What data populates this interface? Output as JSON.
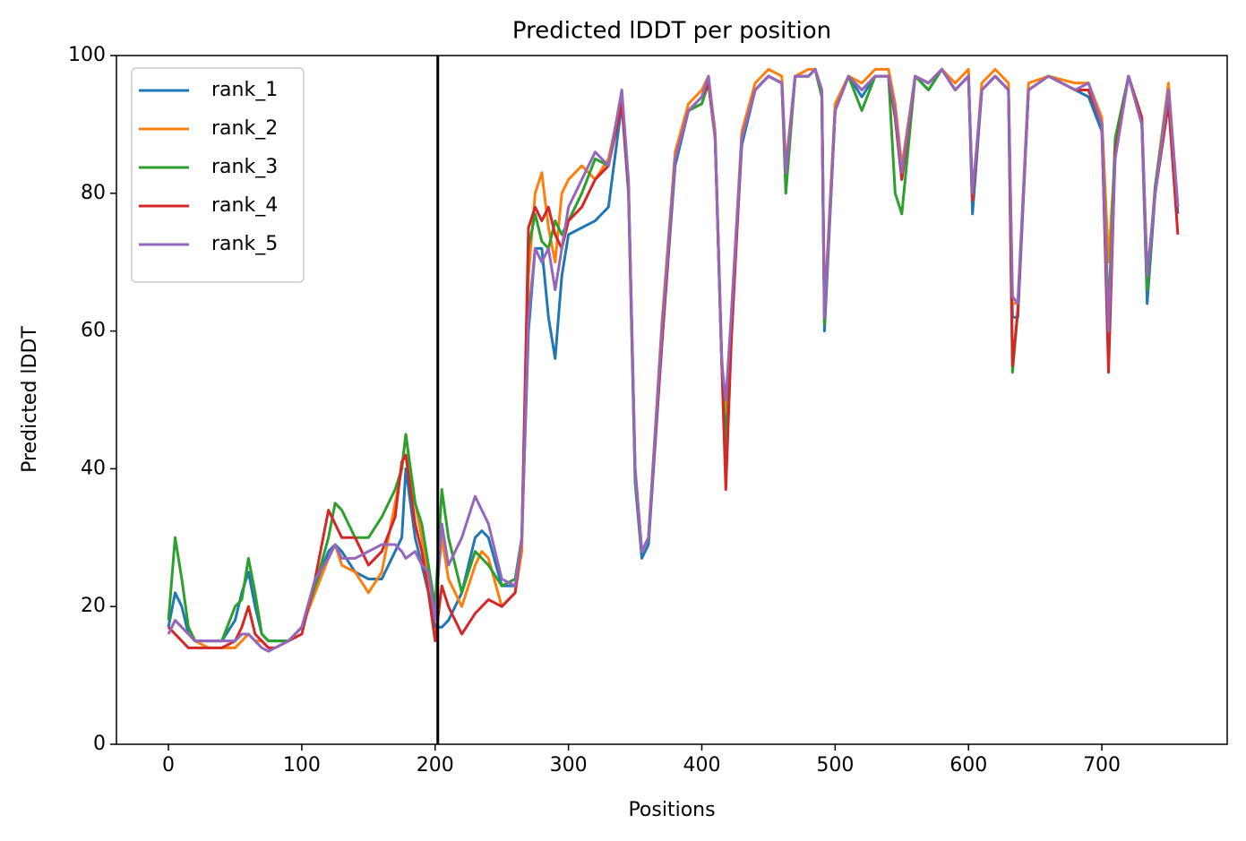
{
  "chart_data": {
    "type": "line",
    "title": "Predicted lDDT per position",
    "xlabel": "Positions",
    "ylabel": "Predicted lDDT",
    "x": [
      0,
      5,
      10,
      15,
      20,
      30,
      40,
      50,
      55,
      60,
      65,
      70,
      75,
      80,
      90,
      100,
      110,
      120,
      125,
      130,
      140,
      150,
      160,
      170,
      175,
      178,
      185,
      190,
      195,
      200,
      205,
      210,
      220,
      230,
      235,
      240,
      250,
      260,
      265,
      270,
      275,
      280,
      285,
      290,
      295,
      300,
      310,
      320,
      330,
      340,
      345,
      350,
      355,
      360,
      370,
      380,
      390,
      400,
      405,
      410,
      415,
      418,
      422,
      430,
      440,
      450,
      460,
      463,
      470,
      480,
      485,
      490,
      492,
      500,
      510,
      520,
      530,
      540,
      545,
      550,
      560,
      570,
      580,
      590,
      600,
      603,
      610,
      620,
      630,
      633,
      637,
      645,
      660,
      680,
      690,
      700,
      705,
      710,
      720,
      730,
      734,
      740,
      750,
      757
    ],
    "series": [
      {
        "name": "rank_1",
        "color": "#1f77b4",
        "values": [
          17,
          22,
          20,
          16,
          15,
          15,
          15,
          18,
          22,
          25,
          20,
          16,
          15,
          15,
          15,
          17,
          23,
          28,
          29,
          28,
          25,
          24,
          24,
          28,
          30,
          40,
          30,
          26,
          22,
          17,
          17,
          18,
          22,
          30,
          31,
          30,
          23,
          23,
          30,
          60,
          72,
          72,
          62,
          56,
          68,
          74,
          75,
          76,
          78,
          93,
          80,
          38,
          27,
          29,
          58,
          84,
          92,
          93,
          96,
          88,
          55,
          45,
          60,
          87,
          95,
          97,
          96,
          82,
          97,
          97,
          98,
          94,
          60,
          92,
          97,
          94,
          97,
          97,
          91,
          82,
          97,
          95,
          98,
          95,
          97,
          77,
          95,
          97,
          95,
          62,
          62,
          95,
          97,
          95,
          94,
          89,
          57,
          86,
          97,
          90,
          64,
          80,
          95,
          77
        ]
      },
      {
        "name": "rank_2",
        "color": "#ff7f0e",
        "values": [
          16,
          18,
          17,
          16,
          15,
          14,
          14,
          14,
          15,
          16,
          15,
          15,
          14,
          14,
          15,
          17,
          22,
          27,
          29,
          26,
          25,
          22,
          25,
          35,
          40,
          45,
          35,
          30,
          24,
          20,
          30,
          24,
          20,
          26,
          28,
          27,
          20,
          22,
          28,
          68,
          80,
          83,
          75,
          70,
          80,
          82,
          84,
          82,
          85,
          94,
          81,
          39,
          28,
          30,
          61,
          86,
          93,
          95,
          97,
          89,
          56,
          48,
          62,
          89,
          96,
          98,
          97,
          84,
          97,
          98,
          98,
          95,
          63,
          93,
          97,
          96,
          98,
          98,
          93,
          84,
          97,
          96,
          98,
          96,
          98,
          79,
          96,
          98,
          96,
          64,
          64,
          96,
          97,
          96,
          96,
          91,
          70,
          86,
          97,
          91,
          66,
          81,
          96,
          78
        ]
      },
      {
        "name": "rank_3",
        "color": "#2ca02c",
        "values": [
          18,
          30,
          24,
          17,
          15,
          15,
          15,
          20,
          21,
          27,
          22,
          16,
          15,
          15,
          15,
          17,
          23,
          30,
          35,
          34,
          30,
          30,
          33,
          37,
          40,
          45,
          35,
          32,
          26,
          20,
          37,
          30,
          22,
          28,
          27,
          26,
          23,
          24,
          30,
          72,
          77,
          73,
          72,
          76,
          74,
          76,
          80,
          85,
          84,
          94,
          81,
          39,
          28,
          30,
          60,
          85,
          92,
          93,
          96,
          88,
          55,
          42,
          60,
          88,
          95,
          97,
          96,
          80,
          97,
          97,
          98,
          94,
          61,
          92,
          97,
          92,
          97,
          97,
          80,
          77,
          97,
          95,
          98,
          95,
          97,
          79,
          95,
          97,
          95,
          54,
          63,
          95,
          97,
          95,
          95,
          90,
          62,
          88,
          97,
          90,
          66,
          81,
          95,
          78
        ]
      },
      {
        "name": "rank_4",
        "color": "#d62728",
        "values": [
          17,
          16,
          15,
          14,
          14,
          14,
          14,
          15,
          17,
          20,
          16,
          15,
          14,
          14,
          15,
          16,
          24,
          34,
          32,
          30,
          30,
          26,
          28,
          33,
          41,
          42,
          32,
          28,
          22,
          15,
          23,
          20,
          16,
          19,
          20,
          21,
          20,
          22,
          30,
          75,
          78,
          76,
          78,
          74,
          72,
          76,
          78,
          82,
          84,
          93,
          81,
          40,
          28,
          30,
          58,
          85,
          92,
          94,
          96,
          88,
          55,
          37,
          58,
          88,
          95,
          97,
          96,
          83,
          97,
          97,
          98,
          95,
          62,
          92,
          97,
          95,
          97,
          97,
          91,
          82,
          97,
          96,
          98,
          95,
          97,
          79,
          95,
          97,
          95,
          55,
          63,
          95,
          97,
          95,
          95,
          90,
          54,
          86,
          97,
          91,
          68,
          80,
          93,
          74
        ]
      },
      {
        "name": "rank_5",
        "color": "#9467bd",
        "values": [
          16,
          18,
          17,
          16,
          15,
          15,
          15,
          15,
          16,
          16,
          15,
          14,
          13.5,
          14,
          15,
          17,
          24,
          27,
          29,
          27,
          27,
          28,
          29,
          29,
          28,
          27,
          28,
          26,
          25,
          18,
          32,
          26,
          30,
          36,
          34,
          32,
          24,
          23,
          30,
          62,
          72,
          70,
          72,
          66,
          72,
          78,
          82,
          86,
          84,
          95,
          82,
          40,
          28,
          30,
          60,
          85,
          92,
          94,
          97,
          88,
          55,
          50,
          62,
          88,
          95,
          97,
          96,
          83,
          97,
          97,
          98,
          95,
          62,
          92,
          97,
          95,
          97,
          97,
          92,
          83,
          97,
          96,
          98,
          95,
          97,
          80,
          95,
          97,
          95,
          65,
          64,
          95,
          97,
          95,
          96,
          90,
          60,
          85,
          97,
          90,
          68,
          80,
          95,
          78
        ]
      }
    ],
    "vline_x": 202,
    "vline_color": "#000000",
    "xlim": [
      -39,
      794
    ],
    "ylim": [
      0,
      100
    ],
    "xticks": [
      0,
      100,
      200,
      300,
      400,
      500,
      600,
      700
    ],
    "yticks": [
      0,
      20,
      40,
      60,
      80,
      100
    ],
    "legend": "upper left"
  }
}
